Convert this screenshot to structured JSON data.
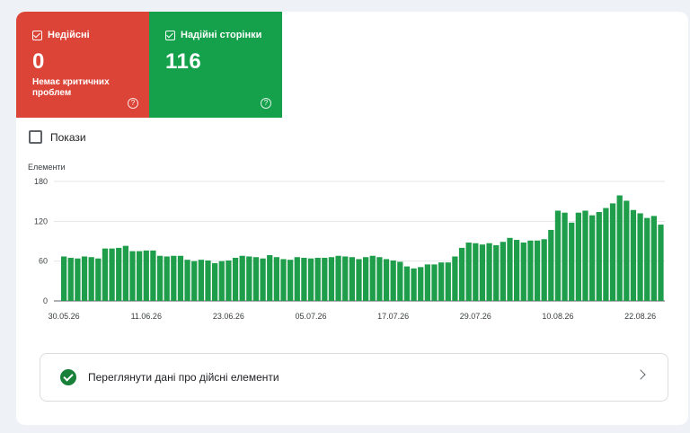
{
  "tiles": {
    "invalid": {
      "label": "Недійсні",
      "value": "0",
      "sub": "Немає критичних проблем",
      "help": "?",
      "color": "#db4437"
    },
    "valid": {
      "label": "Надійні сторінки",
      "value": "116",
      "help": "?",
      "color": "#15a04b"
    }
  },
  "impressions_label": "Покази",
  "chart_data": {
    "type": "bar",
    "ylabel": "Елементи",
    "ylim": [
      0,
      180
    ],
    "yticks": [
      "0",
      "60",
      "120",
      "180"
    ],
    "xticks": [
      "30.05.26",
      "11.06.26",
      "23.06.26",
      "05.07.26",
      "17.07.26",
      "29.07.26",
      "10.08.26",
      "22.08.26"
    ],
    "bar_color": "#1e9e4a",
    "values": [
      67,
      65,
      64,
      67,
      66,
      64,
      79,
      79,
      80,
      83,
      75,
      75,
      76,
      76,
      68,
      67,
      68,
      68,
      62,
      60,
      62,
      61,
      57,
      60,
      61,
      65,
      68,
      67,
      66,
      64,
      69,
      66,
      63,
      62,
      66,
      65,
      64,
      65,
      65,
      66,
      68,
      67,
      66,
      63,
      66,
      68,
      66,
      63,
      61,
      59,
      52,
      49,
      51,
      55,
      55,
      58,
      58,
      67,
      80,
      88,
      87,
      85,
      87,
      84,
      89,
      95,
      92,
      88,
      91,
      91,
      93,
      107,
      136,
      133,
      118,
      133,
      136,
      129,
      134,
      140,
      147,
      159,
      151,
      137,
      132,
      125,
      128,
      115
    ]
  },
  "action": {
    "label": "Переглянути дані про дійсні елементи"
  }
}
